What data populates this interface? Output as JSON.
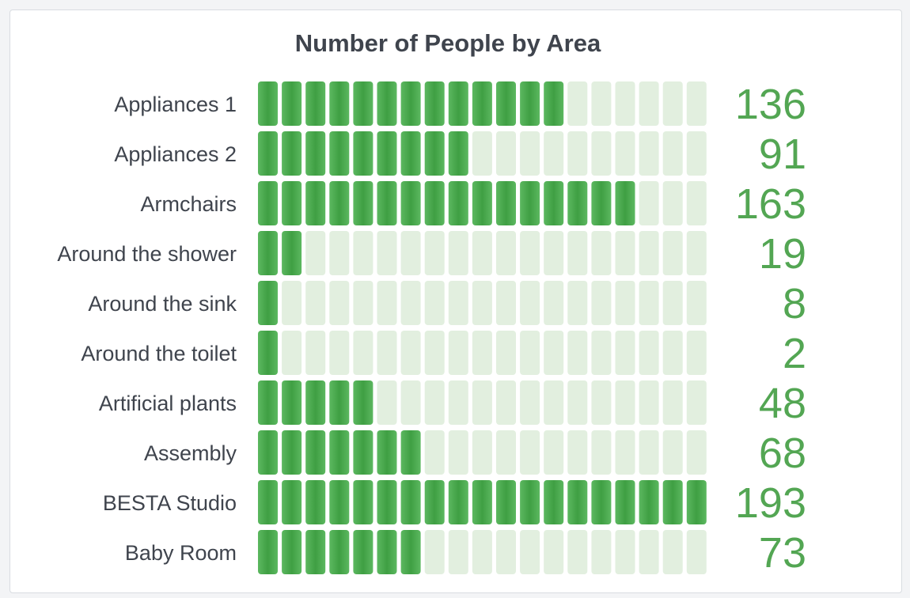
{
  "panel": {
    "title": "Number of People by Area"
  },
  "chart_data": {
    "type": "bar",
    "title": "Number of People by Area",
    "categories": [
      "Appliances 1",
      "Appliances 2",
      "Armchairs",
      "Around the shower",
      "Around the sink",
      "Around the toilet",
      "Artificial plants",
      "Assembly",
      "BESTA Studio",
      "Baby Room"
    ],
    "values": [
      136,
      91,
      163,
      19,
      8,
      2,
      48,
      68,
      193,
      73
    ],
    "value_labels": [
      "136",
      "91",
      "163",
      "19",
      "8",
      "2",
      "48",
      "68",
      "193",
      "73"
    ],
    "xlim": [
      0,
      193
    ],
    "grid": false,
    "legend": "none",
    "colors": {
      "filled": "#4caf50",
      "filled_dark": "#3a9a3e",
      "empty": "#e2efdf",
      "value_text": "#53a653",
      "label_text": "#3f444d"
    }
  }
}
